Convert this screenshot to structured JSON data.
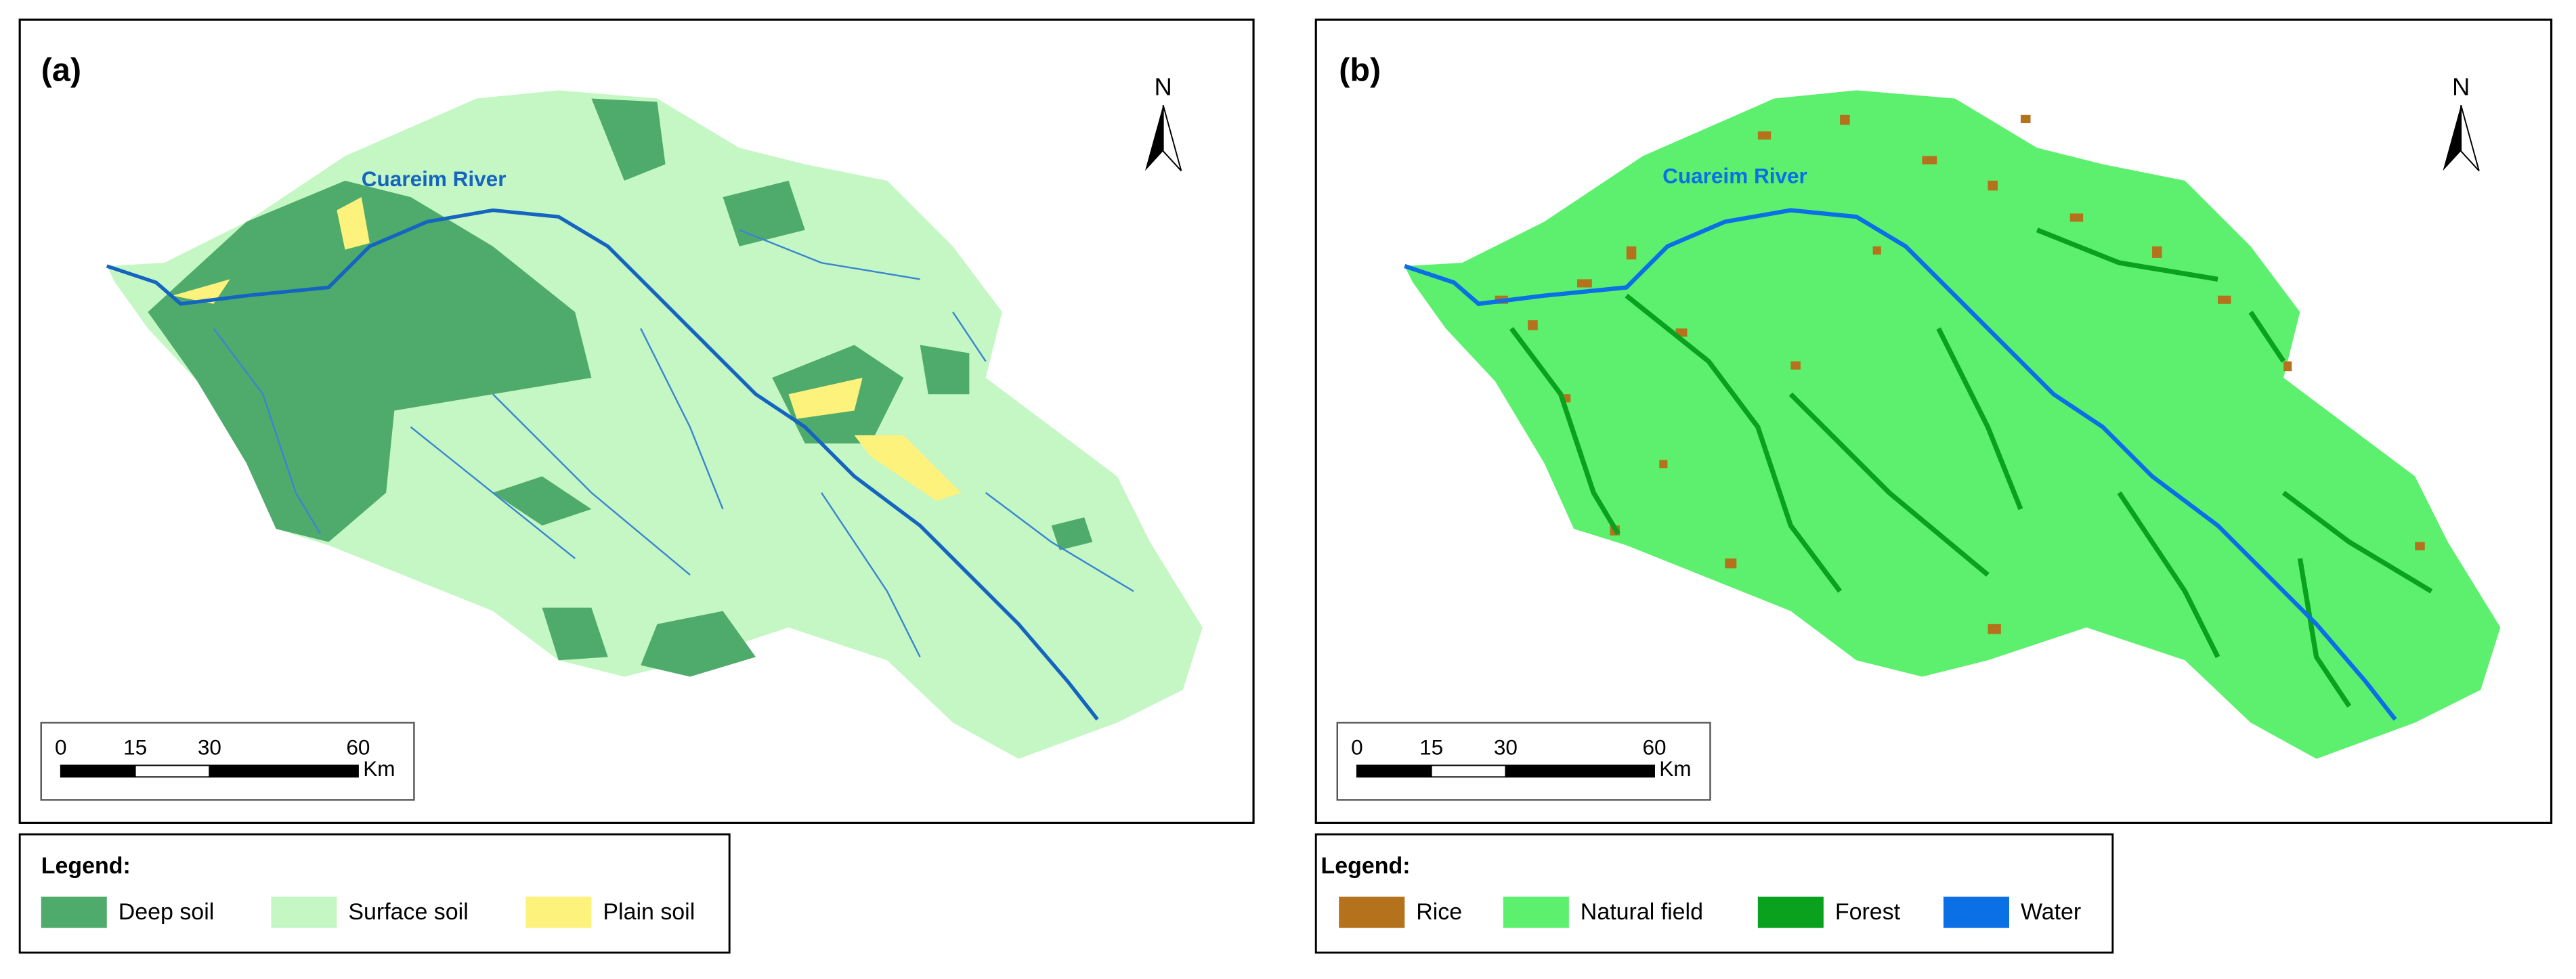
{
  "panels": [
    {
      "label": "(a)",
      "river_label": "Cuareim River",
      "north": "N",
      "scale": {
        "ticks": [
          0,
          15,
          30,
          60
        ],
        "unit": "Km"
      },
      "legend": {
        "title": "Legend:",
        "items": [
          {
            "label": "Deep soil",
            "color": "#4fab6c"
          },
          {
            "label": "Surface soil",
            "color": "#c4f7c4"
          },
          {
            "label": "Plain soil",
            "color": "#fdf27c"
          }
        ]
      }
    },
    {
      "label": "(b)",
      "river_label": "Cuareim River",
      "north": "N",
      "scale": {
        "ticks": [
          0,
          15,
          30,
          60
        ],
        "unit": "Km"
      },
      "legend": {
        "title": "Legend:",
        "items": [
          {
            "label": "Rice",
            "color": "#b5721c"
          },
          {
            "label": "Natural field",
            "color": "#5cf06e"
          },
          {
            "label": "Forest",
            "color": "#0aa11e"
          },
          {
            "label": "Water",
            "color": "#0b6fe6"
          }
        ]
      }
    }
  ]
}
